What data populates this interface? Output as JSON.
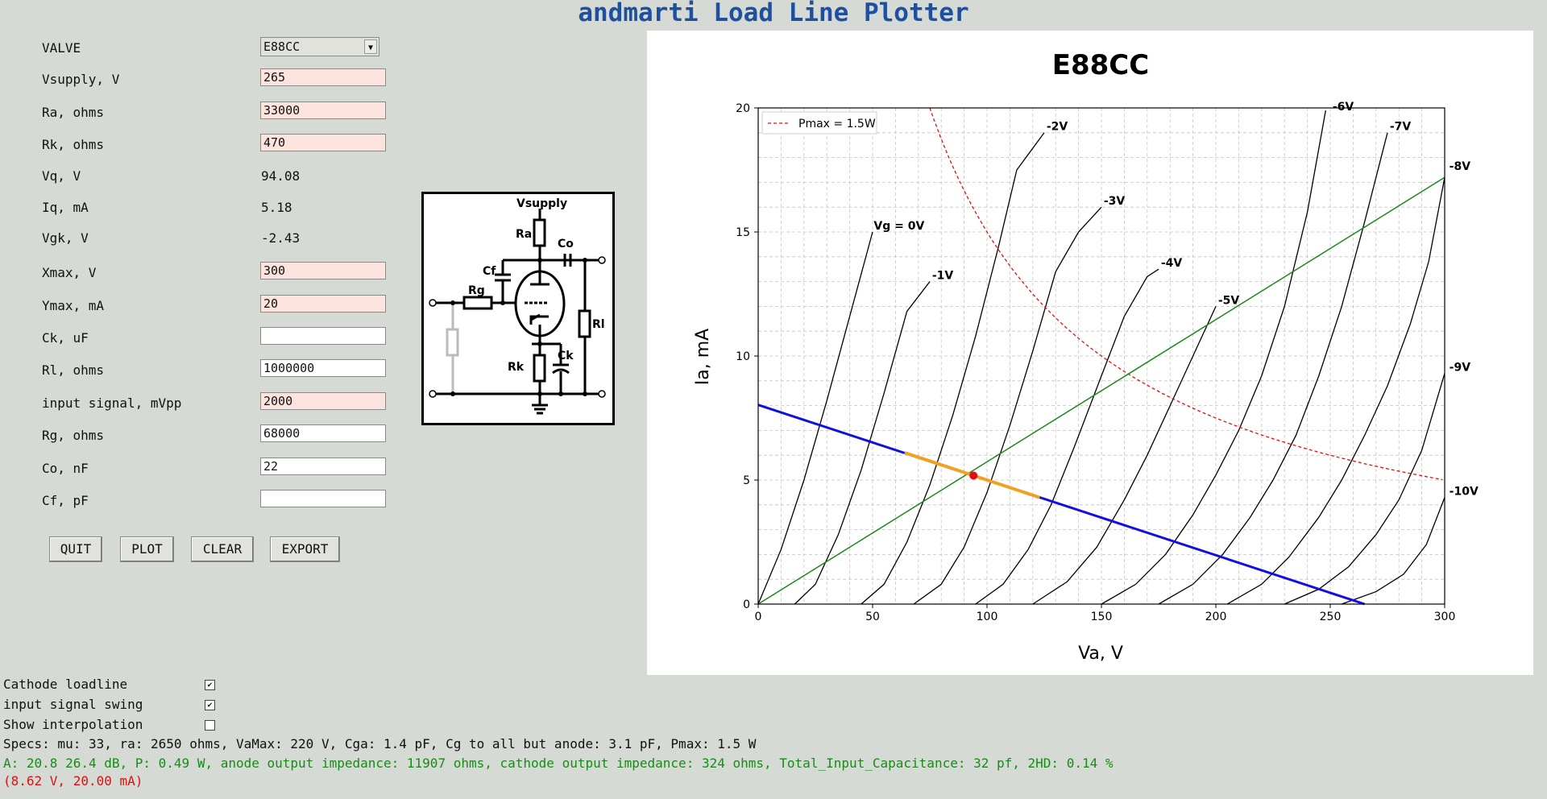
{
  "app": {
    "title": "andmarti Load Line Plotter"
  },
  "form": {
    "valve_label": "VALVE",
    "valve_value": "E88CC",
    "vsupply_label": "Vsupply, V",
    "vsupply_value": "265",
    "ra_label": "Ra, ohms",
    "ra_value": "33000",
    "rk_label": "Rk, ohms",
    "rk_value": "470",
    "vq_label": "Vq, V",
    "vq_value": "94.08",
    "iq_label": "Iq, mA",
    "iq_value": "5.18",
    "vgk_label": "Vgk, V",
    "vgk_value": "-2.43",
    "xmax_label": "Xmax, V",
    "xmax_value": "300",
    "ymax_label": "Ymax, mA",
    "ymax_value": "20",
    "ck_label": "Ck, uF",
    "ck_value": "",
    "rl_label": "Rl, ohms",
    "rl_value": "1000000",
    "input_signal_label": "input signal, mVpp",
    "input_signal_value": "2000",
    "rg_label": "Rg, ohms",
    "rg_value": "68000",
    "co_label": "Co, nF",
    "co_value": "22",
    "cf_label": "Cf, pF",
    "cf_value": ""
  },
  "buttons": {
    "quit": "QUIT",
    "plot": "PLOT",
    "clear": "CLEAR",
    "export": "EXPORT"
  },
  "schematic": {
    "vsupply": "Vsupply",
    "ra": "Ra",
    "co": "Co",
    "cf": "Cf",
    "rg": "Rg",
    "rl": "Rl",
    "rk": "Rk",
    "ck": "Ck"
  },
  "options": {
    "cathode_loadline_label": "Cathode loadline",
    "cathode_loadline_checked": true,
    "input_swing_label": "input signal swing",
    "input_swing_checked": true,
    "show_interpolation_label": "Show interpolation",
    "show_interpolation_checked": false
  },
  "status": {
    "specs": "Specs: mu: 33, ra: 2650 ohms, VaMax: 220 V, Cga: 1.4 pF, Cg to all but anode: 3.1 pF, Pmax: 1.5 W",
    "results": "A: 20.8 26.4 dB, P: 0.49 W, anode output impedance: 11907 ohms, cathode output impedance: 324 ohms, Total_Input_Capacitance: 32 pf, 2HD: 0.14 %",
    "cursor": "(8.62 V, 20.00 mA)",
    "results_color": "#1a8a1a",
    "cursor_color": "#e01010"
  },
  "chart_data": {
    "type": "line",
    "title": "E88CC",
    "xlabel": "Va, V",
    "ylabel": "Ia, mA",
    "xlim": [
      0,
      300
    ],
    "ylim": [
      0,
      20
    ],
    "x_ticks": [
      0,
      50,
      100,
      150,
      200,
      250,
      300
    ],
    "y_ticks": [
      0,
      5,
      10,
      15,
      20
    ],
    "grid": true,
    "legend": {
      "position": "top-left",
      "entries": [
        "Pmax = 1.5W"
      ]
    },
    "series": [
      {
        "name": "Vg = 0V",
        "kind": "curve",
        "points": [
          [
            0,
            0
          ],
          [
            10,
            2.2
          ],
          [
            20,
            5.0
          ],
          [
            30,
            8.2
          ],
          [
            40,
            11.6
          ],
          [
            50,
            15.0
          ]
        ]
      },
      {
        "name": "-1V",
        "kind": "curve",
        "points": [
          [
            16,
            0
          ],
          [
            25,
            0.8
          ],
          [
            35,
            2.8
          ],
          [
            45,
            5.4
          ],
          [
            55,
            8.5
          ],
          [
            65,
            11.8
          ],
          [
            75,
            13.0
          ]
        ]
      },
      {
        "name": "-2V",
        "kind": "curve",
        "points": [
          [
            45,
            0
          ],
          [
            55,
            0.8
          ],
          [
            65,
            2.5
          ],
          [
            75,
            4.8
          ],
          [
            85,
            7.6
          ],
          [
            95,
            10.8
          ],
          [
            105,
            14.4
          ],
          [
            113,
            17.5
          ],
          [
            125,
            19.0
          ]
        ]
      },
      {
        "name": "-3V",
        "kind": "curve",
        "points": [
          [
            68,
            0
          ],
          [
            80,
            0.8
          ],
          [
            90,
            2.3
          ],
          [
            100,
            4.5
          ],
          [
            110,
            7.2
          ],
          [
            120,
            10.2
          ],
          [
            130,
            13.4
          ],
          [
            140,
            15.0
          ],
          [
            150,
            16.0
          ]
        ]
      },
      {
        "name": "-4V",
        "kind": "curve",
        "points": [
          [
            95,
            0
          ],
          [
            107,
            0.8
          ],
          [
            118,
            2.2
          ],
          [
            128,
            4.0
          ],
          [
            138,
            6.3
          ],
          [
            150,
            9.2
          ],
          [
            160,
            11.6
          ],
          [
            170,
            13.2
          ],
          [
            175,
            13.5
          ]
        ]
      },
      {
        "name": "-5V",
        "kind": "curve",
        "points": [
          [
            120,
            0
          ],
          [
            135,
            0.9
          ],
          [
            148,
            2.3
          ],
          [
            160,
            4.2
          ],
          [
            170,
            6.0
          ],
          [
            180,
            8.0
          ],
          [
            190,
            10.0
          ],
          [
            200,
            12.0
          ]
        ]
      },
      {
        "name": "-6V",
        "kind": "curve",
        "points": [
          [
            150,
            0
          ],
          [
            165,
            0.8
          ],
          [
            178,
            2.0
          ],
          [
            190,
            3.6
          ],
          [
            200,
            5.2
          ],
          [
            210,
            7.0
          ],
          [
            220,
            9.2
          ],
          [
            230,
            12.0
          ],
          [
            240,
            15.8
          ],
          [
            248,
            19.9
          ]
        ]
      },
      {
        "name": "-7V",
        "kind": "curve",
        "points": [
          [
            175,
            0
          ],
          [
            190,
            0.8
          ],
          [
            203,
            2.0
          ],
          [
            215,
            3.5
          ],
          [
            225,
            5.0
          ],
          [
            235,
            6.8
          ],
          [
            245,
            9.2
          ],
          [
            255,
            12.0
          ],
          [
            265,
            15.4
          ],
          [
            275,
            19.0
          ]
        ]
      },
      {
        "name": "-8V",
        "kind": "curve",
        "points": [
          [
            205,
            0
          ],
          [
            220,
            0.8
          ],
          [
            232,
            1.9
          ],
          [
            245,
            3.5
          ],
          [
            255,
            5.0
          ],
          [
            265,
            6.8
          ],
          [
            275,
            8.8
          ],
          [
            285,
            11.3
          ],
          [
            293,
            13.8
          ],
          [
            300,
            17.2
          ]
        ]
      },
      {
        "name": "-9V",
        "kind": "curve",
        "points": [
          [
            230,
            0
          ],
          [
            245,
            0.6
          ],
          [
            258,
            1.5
          ],
          [
            270,
            2.8
          ],
          [
            280,
            4.2
          ],
          [
            290,
            6.2
          ],
          [
            300,
            9.3
          ]
        ]
      },
      {
        "name": "-10V",
        "kind": "curve",
        "points": [
          [
            255,
            0
          ],
          [
            270,
            0.5
          ],
          [
            282,
            1.2
          ],
          [
            292,
            2.4
          ],
          [
            300,
            4.3
          ]
        ]
      },
      {
        "name": "Pmax = 1.5W",
        "kind": "pmax",
        "color": "#e01010",
        "pmax_w": 1.5
      },
      {
        "name": "Cathode loadline",
        "kind": "cathode",
        "color": "#1a8a1a",
        "points": [
          [
            0,
            0
          ],
          [
            300,
            17.2
          ]
        ]
      },
      {
        "name": "Load line",
        "kind": "loadline",
        "color": "#1010e0",
        "points": [
          [
            0,
            8.03
          ],
          [
            265,
            0
          ]
        ]
      },
      {
        "name": "Input signal swing",
        "kind": "swing",
        "color": "#f2a020",
        "points": [
          [
            64,
            6.1
          ],
          [
            123,
            4.3
          ]
        ]
      },
      {
        "name": "Operating point",
        "kind": "point",
        "color": "#e01010",
        "points": [
          [
            94.08,
            5.18
          ]
        ]
      }
    ],
    "curve_labels": [
      {
        "text": "Vg = 0V",
        "at": [
          50.5,
          15.1
        ]
      },
      {
        "text": "-1V",
        "at": [
          76,
          13.1
        ]
      },
      {
        "text": "-2V",
        "at": [
          126,
          19.1
        ]
      },
      {
        "text": "-3V",
        "at": [
          151,
          16.1
        ]
      },
      {
        "text": "-4V",
        "at": [
          176,
          13.6
        ]
      },
      {
        "text": "-5V",
        "at": [
          201,
          12.1
        ]
      },
      {
        "text": "-6V",
        "at": [
          251,
          19.9
        ]
      },
      {
        "text": "-7V",
        "at": [
          276,
          19.1
        ]
      },
      {
        "text": "-8V",
        "at": [
          302,
          17.5
        ]
      },
      {
        "text": "-9V",
        "at": [
          302,
          9.4
        ]
      },
      {
        "text": "-10V",
        "at": [
          302,
          4.4
        ]
      }
    ]
  }
}
